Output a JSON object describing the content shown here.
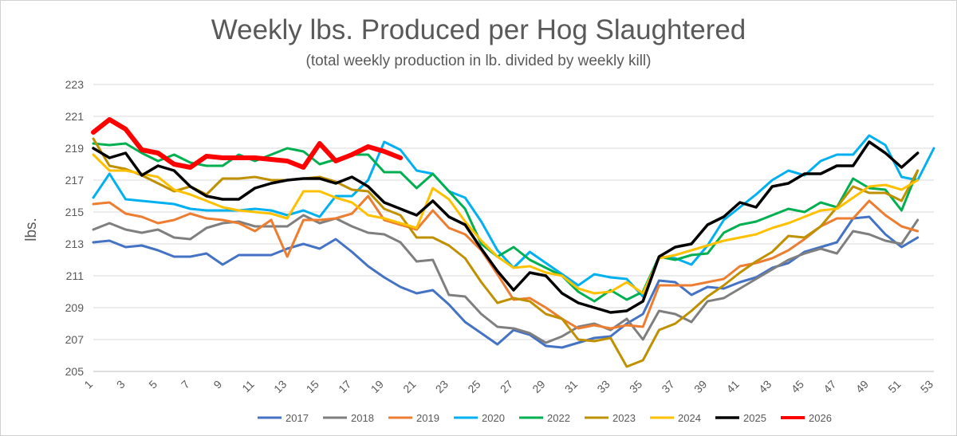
{
  "chart_data": {
    "type": "line",
    "title": "Weekly lbs. Produced per Hog Slaughtered",
    "subtitle": "(total weekly production in lb. divided by weekly kill)",
    "ylabel": "lbs.",
    "xlabel": "",
    "ylim": [
      205,
      223
    ],
    "yticks": [
      205,
      207,
      209,
      211,
      213,
      215,
      217,
      219,
      221,
      223
    ],
    "xlim": [
      1,
      53
    ],
    "xticks": [
      1,
      3,
      5,
      7,
      9,
      11,
      13,
      15,
      17,
      19,
      21,
      23,
      25,
      27,
      29,
      31,
      33,
      35,
      37,
      39,
      41,
      43,
      45,
      47,
      49,
      51,
      53
    ],
    "grid": true,
    "legend_position": "bottom",
    "series": [
      {
        "name": "2017",
        "color": "#4472C4",
        "width": 3,
        "values": [
          213.1,
          213.2,
          212.8,
          212.9,
          212.6,
          212.2,
          212.2,
          212.4,
          211.7,
          212.3,
          212.3,
          212.3,
          212.7,
          213.0,
          212.7,
          213.3,
          212.5,
          211.6,
          210.9,
          210.3,
          209.9,
          210.1,
          209.2,
          208.1,
          207.4,
          206.7,
          207.6,
          207.3,
          206.6,
          206.5,
          206.8,
          207.1,
          207.2,
          208.0,
          208.6,
          210.7,
          210.6,
          209.8,
          210.3,
          210.2,
          210.6,
          210.9,
          211.5,
          211.8,
          212.5,
          212.8,
          213.1,
          214.6,
          214.7,
          213.6,
          212.8,
          213.4
        ]
      },
      {
        "name": "2018",
        "color": "#7F7F7F",
        "width": 3,
        "values": [
          213.9,
          214.3,
          213.9,
          213.7,
          213.9,
          213.4,
          213.3,
          214.0,
          214.3,
          214.4,
          214.1,
          214.1,
          214.1,
          214.8,
          214.3,
          214.6,
          214.1,
          213.7,
          213.6,
          213.1,
          211.9,
          212.0,
          209.8,
          209.7,
          208.6,
          207.8,
          207.7,
          207.4,
          206.8,
          207.2,
          207.8,
          208.0,
          207.6,
          208.3,
          207.0,
          208.8,
          208.6,
          208.1,
          209.4,
          209.6,
          210.2,
          210.8,
          211.4,
          212.0,
          212.4,
          212.7,
          212.4,
          213.8,
          213.6,
          213.2,
          213.0,
          214.5
        ]
      },
      {
        "name": "2019",
        "color": "#ED7D31",
        "width": 3,
        "values": [
          215.5,
          215.6,
          214.9,
          214.7,
          214.3,
          214.5,
          214.9,
          214.6,
          214.5,
          214.3,
          213.8,
          214.5,
          212.2,
          214.5,
          214.5,
          214.6,
          214.9,
          216.0,
          214.5,
          214.2,
          213.9,
          215.1,
          214.0,
          213.6,
          212.6,
          211.1,
          209.5,
          209.6,
          209.0,
          208.3,
          207.7,
          207.9,
          207.7,
          207.9,
          207.8,
          210.4,
          210.4,
          210.4,
          210.6,
          210.8,
          211.6,
          211.8,
          212.1,
          212.6,
          213.3,
          214.1,
          214.6,
          214.6,
          215.7,
          214.8,
          214.1,
          213.8
        ]
      },
      {
        "name": "2020",
        "color": "#00B0F0",
        "width": 3,
        "values": [
          215.9,
          217.4,
          215.8,
          215.7,
          215.6,
          215.5,
          215.2,
          215.1,
          215.1,
          215.1,
          215.2,
          215.1,
          214.8,
          215.1,
          214.7,
          216.0,
          216.0,
          217.0,
          219.4,
          218.9,
          217.6,
          217.4,
          216.3,
          215.9,
          214.4,
          212.6,
          211.5,
          212.5,
          211.8,
          211.1,
          210.4,
          211.1,
          210.9,
          210.8,
          209.7,
          212.2,
          212.1,
          211.7,
          212.9,
          214.5,
          215.3,
          216.1,
          217.0,
          217.6,
          217.3,
          218.2,
          218.6,
          218.6,
          219.8,
          219.2,
          217.2,
          217.0,
          219.0
        ]
      },
      {
        "name": "2022",
        "color": "#00B050",
        "width": 3,
        "values": [
          219.3,
          219.2,
          219.3,
          218.7,
          218.2,
          218.6,
          218.1,
          217.9,
          217.9,
          218.6,
          218.2,
          218.6,
          219.0,
          218.8,
          218.0,
          218.3,
          218.6,
          218.6,
          217.5,
          217.5,
          216.5,
          217.4,
          216.3,
          215.2,
          213.0,
          212.2,
          212.8,
          212.0,
          211.5,
          211.0,
          210.0,
          209.4,
          210.1,
          209.5,
          210.0,
          212.2,
          212.0,
          212.3,
          212.4,
          213.7,
          214.2,
          214.4,
          214.8,
          215.2,
          215.0,
          215.6,
          215.3,
          217.1,
          216.5,
          216.4,
          215.1,
          217.6
        ]
      },
      {
        "name": "2023",
        "color": "#BF9000",
        "width": 3,
        "values": [
          219.6,
          217.9,
          217.7,
          217.3,
          216.8,
          216.3,
          216.6,
          216.1,
          217.1,
          217.1,
          217.2,
          217.0,
          217.0,
          217.1,
          217.2,
          216.9,
          216.4,
          216.3,
          215.2,
          214.8,
          213.4,
          213.4,
          212.9,
          212.1,
          210.6,
          209.3,
          209.6,
          209.4,
          208.6,
          208.3,
          207.0,
          206.9,
          207.1,
          205.3,
          205.7,
          207.6,
          208.0,
          208.8,
          209.7,
          210.4,
          211.2,
          211.9,
          212.5,
          213.5,
          213.4,
          214.1,
          215.3,
          216.6,
          216.2,
          216.2,
          215.7,
          217.6
        ]
      },
      {
        "name": "2024",
        "color": "#FFC000",
        "width": 3,
        "values": [
          218.6,
          217.6,
          217.6,
          217.4,
          217.2,
          216.4,
          216.1,
          215.7,
          215.3,
          215.1,
          215.0,
          214.9,
          214.6,
          216.3,
          216.3,
          215.9,
          215.6,
          214.8,
          214.6,
          214.3,
          214.0,
          216.5,
          215.8,
          214.4,
          213.2,
          212.2,
          211.5,
          211.6,
          211.2,
          211.0,
          210.2,
          209.9,
          210.0,
          210.6,
          209.9,
          212.1,
          212.3,
          212.6,
          212.9,
          213.2,
          213.4,
          213.6,
          214.0,
          214.3,
          214.7,
          215.1,
          215.2,
          215.9,
          216.6,
          216.7,
          216.4,
          217.0
        ]
      },
      {
        "name": "2025",
        "color": "#000000",
        "width": 3.5,
        "values": [
          219.0,
          218.4,
          218.7,
          217.3,
          217.9,
          217.6,
          216.6,
          216.0,
          215.8,
          215.8,
          216.5,
          216.8,
          217.0,
          217.1,
          217.1,
          216.8,
          217.2,
          216.6,
          215.6,
          215.2,
          214.8,
          215.7,
          214.7,
          214.2,
          212.7,
          211.3,
          210.1,
          211.2,
          211.0,
          209.9,
          209.3,
          209.0,
          208.7,
          208.8,
          209.4,
          212.2,
          212.8,
          213.0,
          214.2,
          214.7,
          215.6,
          215.3,
          216.6,
          216.8,
          217.4,
          217.4,
          217.9,
          217.9,
          219.4,
          218.7,
          217.8,
          218.7
        ]
      },
      {
        "name": "2026",
        "color": "#FF0000",
        "width": 6,
        "values": [
          220.0,
          220.8,
          220.2,
          218.9,
          218.7,
          218.0,
          217.8,
          218.5,
          218.4,
          218.4,
          218.4,
          218.3,
          218.2,
          217.8,
          219.3,
          218.2,
          218.6,
          219.1,
          218.8,
          218.4
        ]
      }
    ]
  }
}
